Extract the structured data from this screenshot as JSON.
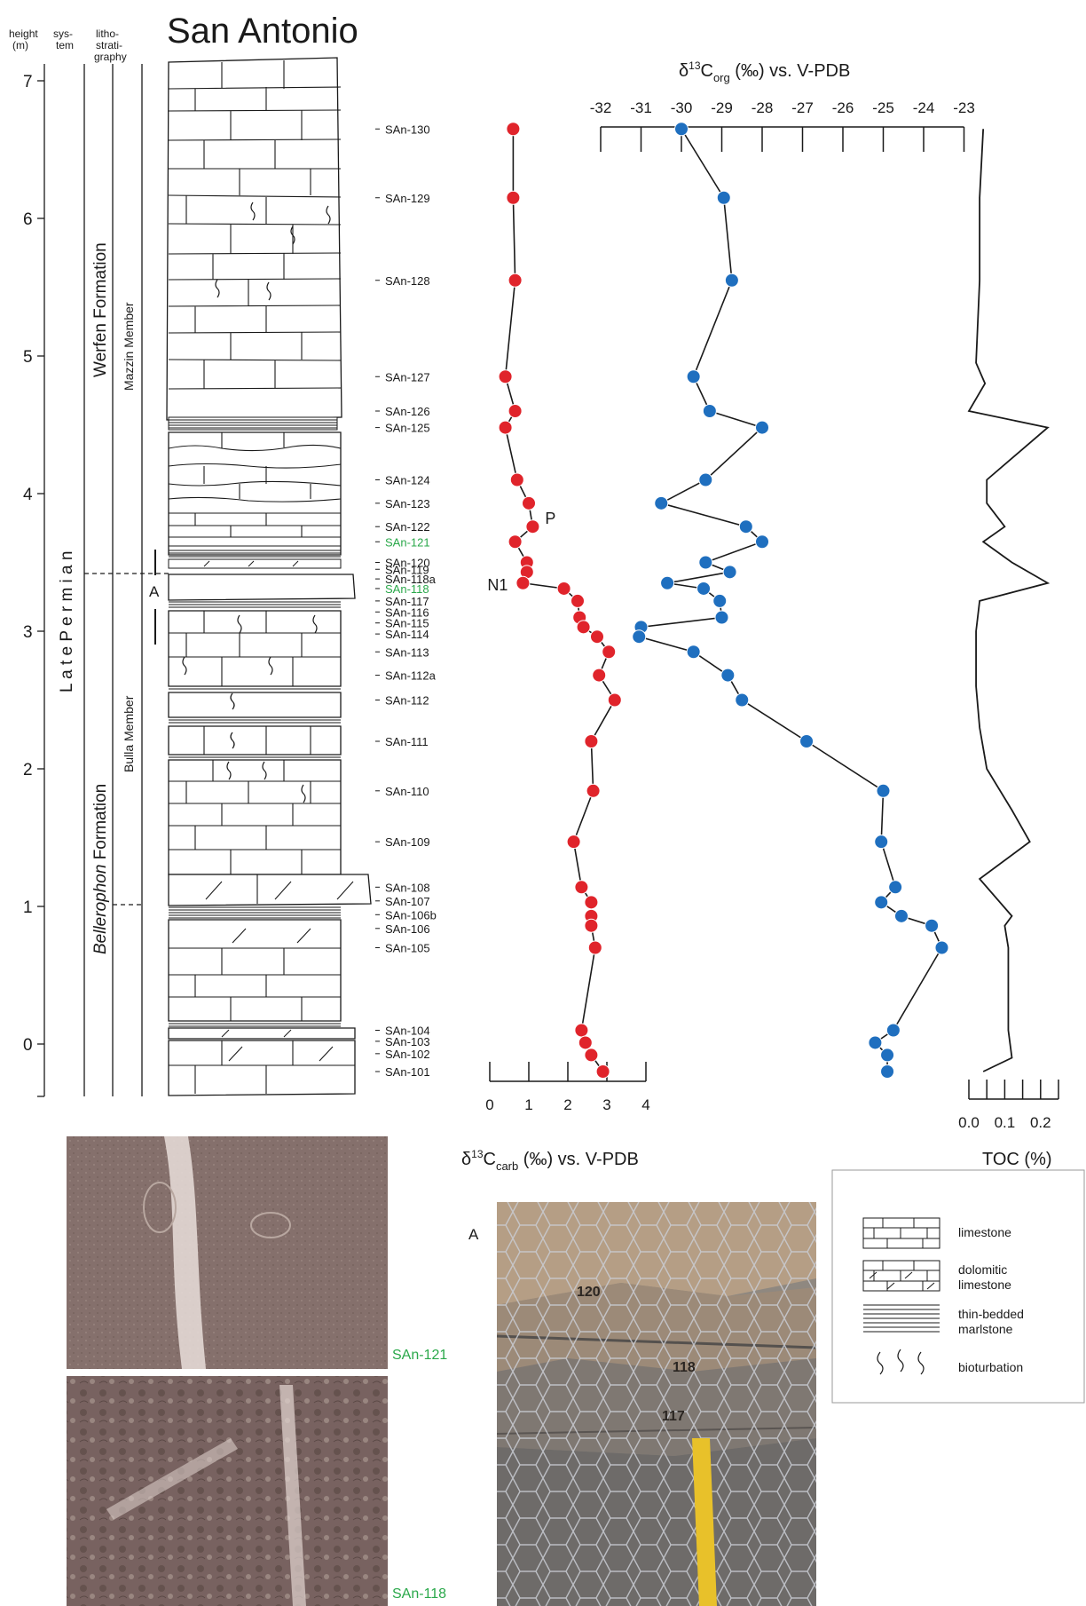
{
  "title": "San Antonio",
  "column_headers": {
    "height": [
      "height",
      "(m)"
    ],
    "system": [
      "sys-",
      "tem"
    ],
    "litho": [
      "litho-",
      "strati-",
      "graphy"
    ]
  },
  "units": {
    "system": "L a t e   P e r m i a n",
    "formation_upper": "Werfen Formation",
    "formation_lower_italic": "Bellerophon",
    "formation_lower_rest": " Formation",
    "member_upper": "Mazzin Member",
    "member_lower": "Bulla Member",
    "photo_marker": "A"
  },
  "sample_highlight_color": "#2aa84a",
  "chart_data": [
    {
      "type": "scatter",
      "name_label": "δ13Ccarb",
      "xlabel": "δ13Ccarb (‰) vs. V-PDB",
      "x_ticks": [
        "0",
        "1",
        "2",
        "3",
        "4"
      ],
      "xlim": [
        0,
        4
      ],
      "ylabel": "height (m)",
      "y_ticks": [
        "7",
        "6",
        "5",
        "4",
        "3",
        "2",
        "1",
        "0"
      ],
      "ylim": [
        -0.4,
        7.2
      ],
      "color": "#e0242b",
      "annotations": [
        {
          "label": "P",
          "y": 3.76
        },
        {
          "label": "N1",
          "y": 3.35
        }
      ],
      "points": [
        {
          "sample": "SAn-130",
          "y": 6.65,
          "x": 0.6
        },
        {
          "sample": "SAn-129",
          "y": 6.15,
          "x": 0.6
        },
        {
          "sample": "SAn-128",
          "y": 5.55,
          "x": 0.65
        },
        {
          "sample": "SAn-127",
          "y": 4.85,
          "x": 0.4
        },
        {
          "sample": "SAn-126",
          "y": 4.6,
          "x": 0.65
        },
        {
          "sample": "SAn-125",
          "y": 4.48,
          "x": 0.4
        },
        {
          "sample": "SAn-124",
          "y": 4.1,
          "x": 0.7
        },
        {
          "sample": "SAn-123",
          "y": 3.93,
          "x": 1.0
        },
        {
          "sample": "SAn-122",
          "y": 3.76,
          "x": 1.1
        },
        {
          "sample": "SAn-121",
          "y": 3.65,
          "x": 0.65
        },
        {
          "sample": "SAn-120",
          "y": 3.5,
          "x": 0.95
        },
        {
          "sample": "SAn-119",
          "y": 3.43,
          "x": 0.95
        },
        {
          "sample": "SAn-118a",
          "y": 3.35,
          "x": 0.85
        },
        {
          "sample": "SAn-118",
          "y": 3.31,
          "x": 1.9
        },
        {
          "sample": "SAn-117",
          "y": 3.22,
          "x": 2.25
        },
        {
          "sample": "SAn-116",
          "y": 3.1,
          "x": 2.3
        },
        {
          "sample": "SAn-115",
          "y": 3.03,
          "x": 2.4
        },
        {
          "sample": "SAn-114",
          "y": 2.96,
          "x": 2.75
        },
        {
          "sample": "SAn-113",
          "y": 2.85,
          "x": 3.05
        },
        {
          "sample": "SAn-112a",
          "y": 2.68,
          "x": 2.8
        },
        {
          "sample": "SAn-112",
          "y": 2.5,
          "x": 3.2
        },
        {
          "sample": "SAn-111",
          "y": 2.2,
          "x": 2.6
        },
        {
          "sample": "SAn-110",
          "y": 1.84,
          "x": 2.65
        },
        {
          "sample": "SAn-109",
          "y": 1.47,
          "x": 2.15
        },
        {
          "sample": "SAn-108",
          "y": 1.14,
          "x": 2.35
        },
        {
          "sample": "SAn-107",
          "y": 1.03,
          "x": 2.6
        },
        {
          "sample": "SAn-106b",
          "y": 0.93,
          "x": 2.6
        },
        {
          "sample": "SAn-106",
          "y": 0.86,
          "x": 2.6
        },
        {
          "sample": "SAn-105",
          "y": 0.7,
          "x": 2.7
        },
        {
          "sample": "SAn-104",
          "y": 0.1,
          "x": 2.35
        },
        {
          "sample": "SAn-103",
          "y": 0.01,
          "x": 2.45
        },
        {
          "sample": "SAn-102",
          "y": -0.08,
          "x": 2.6
        },
        {
          "sample": "SAn-101",
          "y": -0.2,
          "x": 2.9
        }
      ]
    },
    {
      "type": "scatter",
      "name_label": "δ13Corg",
      "xlabel": "δ13Corg (‰) vs. V-PDB",
      "x_ticks": [
        "-32",
        "-31",
        "-30",
        "-29",
        "-28",
        "-27",
        "-26",
        "-25",
        "-24",
        "-23"
      ],
      "xlim": [
        -32,
        -23
      ],
      "color": "#1f6fbf",
      "points": [
        {
          "y": 6.65,
          "x": -30.0
        },
        {
          "y": 6.15,
          "x": -28.95
        },
        {
          "y": 5.55,
          "x": -28.75
        },
        {
          "y": 4.85,
          "x": -29.7
        },
        {
          "y": 4.6,
          "x": -29.3
        },
        {
          "y": 4.48,
          "x": -28.0
        },
        {
          "y": 4.1,
          "x": -29.4
        },
        {
          "y": 3.93,
          "x": -30.5
        },
        {
          "y": 3.76,
          "x": -28.4
        },
        {
          "y": 3.65,
          "x": -28.0
        },
        {
          "y": 3.5,
          "x": -29.4
        },
        {
          "y": 3.43,
          "x": -28.8
        },
        {
          "y": 3.35,
          "x": -30.35
        },
        {
          "y": 3.31,
          "x": -29.45
        },
        {
          "y": 3.22,
          "x": -29.05
        },
        {
          "y": 3.1,
          "x": -29.0
        },
        {
          "y": 3.03,
          "x": -31.0
        },
        {
          "y": 2.96,
          "x": -31.05
        },
        {
          "y": 2.85,
          "x": -29.7
        },
        {
          "y": 2.68,
          "x": -28.85
        },
        {
          "y": 2.5,
          "x": -28.5
        },
        {
          "y": 2.2,
          "x": -26.9
        },
        {
          "y": 1.84,
          "x": -25.0
        },
        {
          "y": 1.47,
          "x": -25.05
        },
        {
          "y": 1.14,
          "x": -24.7
        },
        {
          "y": 1.03,
          "x": -25.05
        },
        {
          "y": 0.93,
          "x": -24.55
        },
        {
          "y": 0.86,
          "x": -23.8
        },
        {
          "y": 0.7,
          "x": -23.55
        },
        {
          "y": 0.1,
          "x": -24.75
        },
        {
          "y": 0.01,
          "x": -25.2
        },
        {
          "y": -0.08,
          "x": -24.9
        },
        {
          "y": -0.2,
          "x": -24.9
        }
      ]
    },
    {
      "type": "line",
      "name_label": "TOC",
      "xlabel": "TOC (%)",
      "x_ticks": [
        "0.0",
        "0.05",
        "0.1",
        "0.15",
        "0.2",
        "0.25"
      ],
      "x_tick_labels_shown": [
        "0.0",
        "0.1",
        "0.2"
      ],
      "xlim": [
        0,
        0.25
      ],
      "color": "#1a1a1a",
      "points": [
        {
          "y": 6.65,
          "x": 0.04
        },
        {
          "y": 6.15,
          "x": 0.03
        },
        {
          "y": 5.55,
          "x": 0.03
        },
        {
          "y": 4.95,
          "x": 0.02
        },
        {
          "y": 4.8,
          "x": 0.045
        },
        {
          "y": 4.6,
          "x": 0.0
        },
        {
          "y": 4.48,
          "x": 0.22
        },
        {
          "y": 4.1,
          "x": 0.05
        },
        {
          "y": 3.93,
          "x": 0.05
        },
        {
          "y": 3.76,
          "x": 0.1
        },
        {
          "y": 3.65,
          "x": 0.04
        },
        {
          "y": 3.5,
          "x": 0.12
        },
        {
          "y": 3.35,
          "x": 0.22
        },
        {
          "y": 3.22,
          "x": 0.03
        },
        {
          "y": 3.0,
          "x": 0.02
        },
        {
          "y": 2.6,
          "x": 0.02
        },
        {
          "y": 2.3,
          "x": 0.03
        },
        {
          "y": 2.0,
          "x": 0.05
        },
        {
          "y": 1.7,
          "x": 0.12
        },
        {
          "y": 1.47,
          "x": 0.17
        },
        {
          "y": 1.2,
          "x": 0.03
        },
        {
          "y": 0.93,
          "x": 0.12
        },
        {
          "y": 0.86,
          "x": 0.1
        },
        {
          "y": 0.7,
          "x": 0.11
        },
        {
          "y": 0.1,
          "x": 0.11
        },
        {
          "y": -0.1,
          "x": 0.12
        },
        {
          "y": -0.2,
          "x": 0.04
        }
      ]
    }
  ],
  "photos": {
    "thin_section_upper": "SAn-121",
    "thin_section_lower": "SAn-118",
    "outcrop_label": "A",
    "outcrop_bed_labels": [
      "120",
      "118",
      "117"
    ]
  },
  "legend": [
    {
      "icon": "limestone-symbol",
      "label": [
        "limestone"
      ]
    },
    {
      "icon": "dolomitic-limestone-symbol",
      "label": [
        "dolomitic",
        "limestone"
      ]
    },
    {
      "icon": "marlstone-symbol",
      "label": [
        "thin-bedded",
        "marlstone"
      ]
    },
    {
      "icon": "bioturbation-symbol",
      "label": [
        "bioturbation"
      ]
    }
  ]
}
